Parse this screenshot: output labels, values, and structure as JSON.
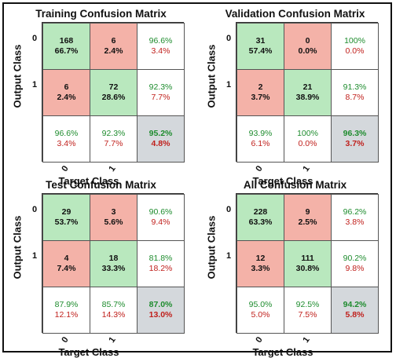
{
  "chart_data": [
    {
      "type": "heatmap",
      "title": "Training Confusion Matrix",
      "xlabel": "Target Class",
      "ylabel": "Output Class",
      "class_labels": [
        "0",
        "1"
      ],
      "cells": [
        [
          {
            "count": "168",
            "pct": "66.7%"
          },
          {
            "count": "6",
            "pct": "2.4%"
          }
        ],
        [
          {
            "count": "6",
            "pct": "2.4%"
          },
          {
            "count": "72",
            "pct": "28.6%"
          }
        ]
      ],
      "row_summary": [
        [
          "96.6%",
          "3.4%"
        ],
        [
          "92.3%",
          "7.7%"
        ]
      ],
      "col_summary": [
        [
          "96.6%",
          "3.4%"
        ],
        [
          "92.3%",
          "7.7%"
        ]
      ],
      "overall": [
        "95.2%",
        "4.8%"
      ]
    },
    {
      "type": "heatmap",
      "title": "Validation Confusion Matrix",
      "xlabel": "Target Class",
      "ylabel": "Output Class",
      "class_labels": [
        "0",
        "1"
      ],
      "cells": [
        [
          {
            "count": "31",
            "pct": "57.4%"
          },
          {
            "count": "0",
            "pct": "0.0%"
          }
        ],
        [
          {
            "count": "2",
            "pct": "3.7%"
          },
          {
            "count": "21",
            "pct": "38.9%"
          }
        ]
      ],
      "row_summary": [
        [
          "100%",
          "0.0%"
        ],
        [
          "91.3%",
          "8.7%"
        ]
      ],
      "col_summary": [
        [
          "93.9%",
          "6.1%"
        ],
        [
          "100%",
          "0.0%"
        ]
      ],
      "overall": [
        "96.3%",
        "3.7%"
      ]
    },
    {
      "type": "heatmap",
      "title": "Test Confusion Matrix",
      "xlabel": "Target Class",
      "ylabel": "Output Class",
      "class_labels": [
        "0",
        "1"
      ],
      "cells": [
        [
          {
            "count": "29",
            "pct": "53.7%"
          },
          {
            "count": "3",
            "pct": "5.6%"
          }
        ],
        [
          {
            "count": "4",
            "pct": "7.4%"
          },
          {
            "count": "18",
            "pct": "33.3%"
          }
        ]
      ],
      "row_summary": [
        [
          "90.6%",
          "9.4%"
        ],
        [
          "81.8%",
          "18.2%"
        ]
      ],
      "col_summary": [
        [
          "87.9%",
          "12.1%"
        ],
        [
          "85.7%",
          "14.3%"
        ]
      ],
      "overall": [
        "87.0%",
        "13.0%"
      ]
    },
    {
      "type": "heatmap",
      "title": "All Confusion Matrix",
      "xlabel": "Target Class",
      "ylabel": "Output Class",
      "class_labels": [
        "0",
        "1"
      ],
      "cells": [
        [
          {
            "count": "228",
            "pct": "63.3%"
          },
          {
            "count": "9",
            "pct": "2.5%"
          }
        ],
        [
          {
            "count": "12",
            "pct": "3.3%"
          },
          {
            "count": "111",
            "pct": "30.8%"
          }
        ]
      ],
      "row_summary": [
        [
          "96.2%",
          "3.8%"
        ],
        [
          "90.2%",
          "9.8%"
        ]
      ],
      "col_summary": [
        [
          "95.0%",
          "5.0%"
        ],
        [
          "92.5%",
          "7.5%"
        ]
      ],
      "overall": [
        "94.2%",
        "5.8%"
      ]
    }
  ],
  "colors": {
    "correct": "#b9e8be",
    "incorrect": "#f4b2a8",
    "summary": "#ffffff",
    "overall": "#d4d8dc",
    "good_text": "#1e8c2e",
    "bad_text": "#c0201c"
  }
}
